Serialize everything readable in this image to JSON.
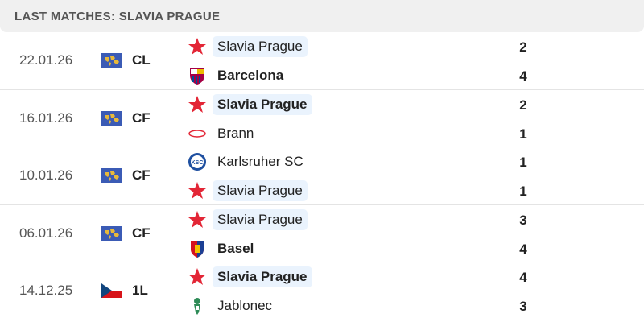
{
  "header": {
    "title": "LAST MATCHES: SLAVIA PRAGUE"
  },
  "colors": {
    "highlight": "#eaf3fd",
    "slavia_red": "#e32636"
  },
  "matches": [
    {
      "date": "22.01.26",
      "competition": "CL",
      "competition_icon": "world-map-flag-icon",
      "home": {
        "name": "Slavia Prague",
        "icon": "slavia-star-icon",
        "score": "2",
        "highlight": true,
        "winner": false
      },
      "away": {
        "name": "Barcelona",
        "icon": "barcelona-crest-icon",
        "score": "4",
        "highlight": false,
        "winner": true
      }
    },
    {
      "date": "16.01.26",
      "competition": "CF",
      "competition_icon": "world-map-flag-icon",
      "home": {
        "name": "Slavia Prague",
        "icon": "slavia-star-icon",
        "score": "2",
        "highlight": true,
        "winner": true
      },
      "away": {
        "name": "Brann",
        "icon": "brann-crest-icon",
        "score": "1",
        "highlight": false,
        "winner": false
      }
    },
    {
      "date": "10.01.26",
      "competition": "CF",
      "competition_icon": "world-map-flag-icon",
      "home": {
        "name": "Karlsruher SC",
        "icon": "ksc-crest-icon",
        "score": "1",
        "highlight": false,
        "winner": false
      },
      "away": {
        "name": "Slavia Prague",
        "icon": "slavia-star-icon",
        "score": "1",
        "highlight": true,
        "winner": false
      }
    },
    {
      "date": "06.01.26",
      "competition": "CF",
      "competition_icon": "world-map-flag-icon",
      "home": {
        "name": "Slavia Prague",
        "icon": "slavia-star-icon",
        "score": "3",
        "highlight": true,
        "winner": false
      },
      "away": {
        "name": "Basel",
        "icon": "basel-crest-icon",
        "score": "4",
        "highlight": false,
        "winner": true
      }
    },
    {
      "date": "14.12.25",
      "competition": "1L",
      "competition_icon": "czech-flag-icon",
      "home": {
        "name": "Slavia Prague",
        "icon": "slavia-star-icon",
        "score": "4",
        "highlight": true,
        "winner": true
      },
      "away": {
        "name": "Jablonec",
        "icon": "jablonec-crest-icon",
        "score": "3",
        "highlight": false,
        "winner": false
      }
    }
  ]
}
